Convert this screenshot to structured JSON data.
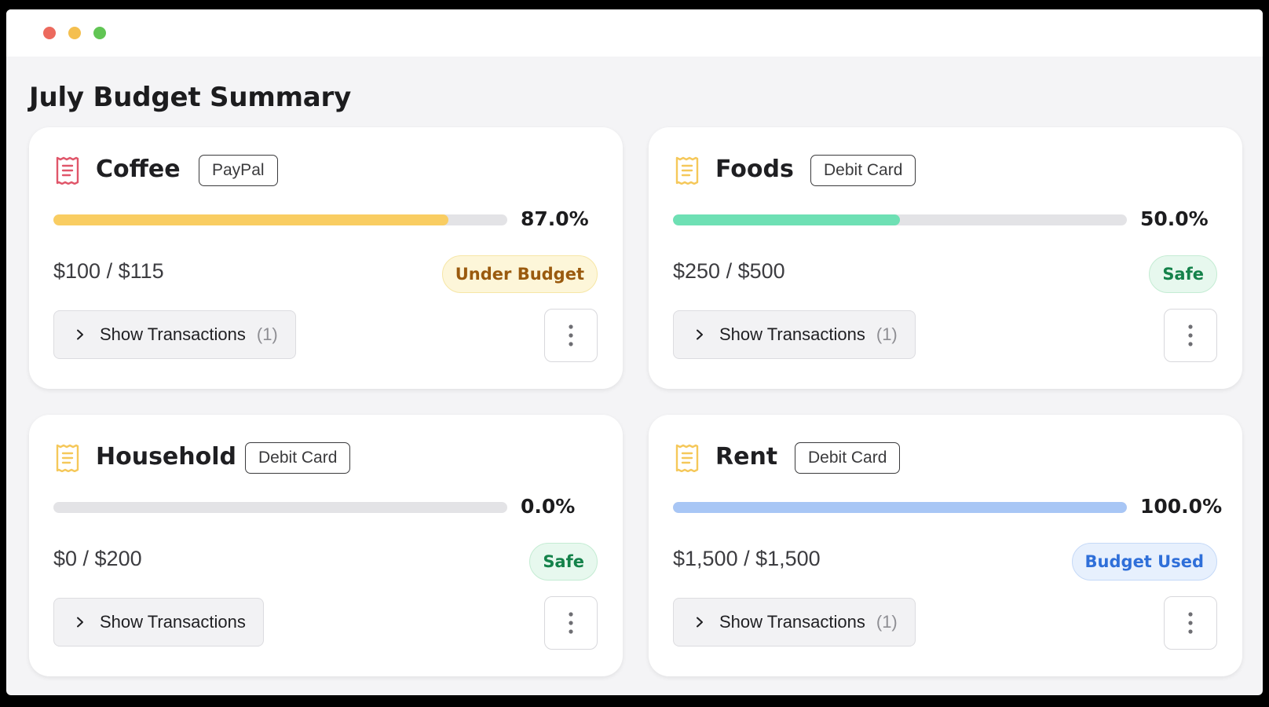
{
  "window": {
    "controls": [
      "close",
      "minimize",
      "maximize"
    ]
  },
  "page": {
    "title": "July Budget Summary"
  },
  "colors": {
    "warn_icon": "#e0566a",
    "ok_icon": "#f5c85a",
    "bar_coffee": "#f9cd62",
    "bar_foods": "#6ee0b4",
    "bar_rent": "#a8c6f5"
  },
  "categories": [
    {
      "name": "Coffee",
      "method": "PayPal",
      "icon": "receipt-icon",
      "percent_label": "87.0%",
      "percent": 87.0,
      "amount": "$100 / $115",
      "status": "Under Budget",
      "show_label": "Show Transactions",
      "count": "(1)"
    },
    {
      "name": "Foods",
      "method": "Debit Card",
      "icon": "receipt-icon",
      "percent_label": "50.0%",
      "percent": 50.0,
      "amount": "$250 / $500",
      "status": "Safe",
      "show_label": "Show Transactions",
      "count": "(1)"
    },
    {
      "name": "Household",
      "method": "Debit Card",
      "icon": "receipt-icon",
      "percent_label": "0.0%",
      "percent": 0.0,
      "amount": "$0 / $200",
      "status": "Safe",
      "show_label": "Show Transactions",
      "count": ""
    },
    {
      "name": "Rent",
      "method": "Debit Card",
      "icon": "receipt-icon",
      "percent_label": "100.0%",
      "percent": 100.0,
      "amount": "$1,500 / $1,500",
      "status": "Budget Used",
      "show_label": "Show Transactions",
      "count": "(1)"
    }
  ]
}
